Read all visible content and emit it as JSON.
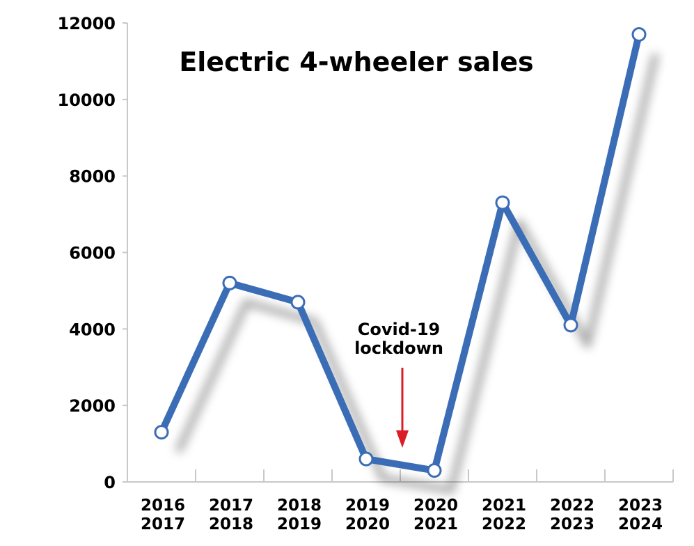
{
  "chart_data": {
    "type": "line",
    "title": "Electric 4-wheeler sales",
    "xlabel": "",
    "ylabel": "",
    "ylim": [
      0,
      12000
    ],
    "yticks": [
      "0",
      "2000",
      "4000",
      "6000",
      "8000",
      "10000",
      "12000"
    ],
    "categories": [
      [
        "2016",
        "2017"
      ],
      [
        "2017",
        "2018"
      ],
      [
        "2018",
        "2019"
      ],
      [
        "2019",
        "2020"
      ],
      [
        "2020",
        "2021"
      ],
      [
        "2021",
        "2022"
      ],
      [
        "2022",
        "2023"
      ],
      [
        "2023",
        "2024"
      ]
    ],
    "series": [
      {
        "values": [
          1300,
          5200,
          4700,
          600,
          300,
          7300,
          4100,
          11700
        ]
      }
    ],
    "grid": false,
    "annotation": {
      "lines": [
        "Covid-19",
        "lockdown"
      ],
      "color": "#d91e26"
    },
    "colors": {
      "line": "#3a6db5",
      "marker_fill": "#ffffff",
      "axis": "#c8c8c8"
    }
  }
}
